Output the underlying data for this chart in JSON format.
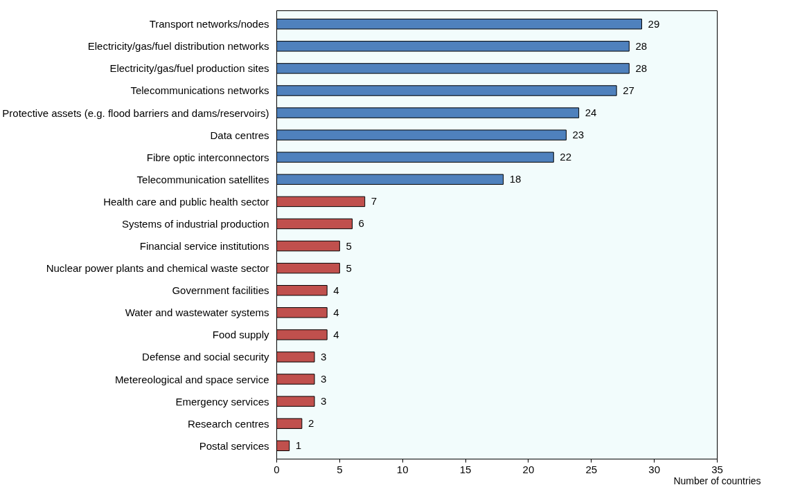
{
  "chart_data": {
    "type": "bar",
    "orientation": "horizontal",
    "xlabel": "Number of countries",
    "categories": [
      "Transport networks/nodes",
      "Electricity/gas/fuel distribution networks",
      "Electricity/gas/fuel production sites",
      "Telecommunications networks",
      "Protective assets (e.g. flood barriers and dams/reservoirs)",
      "Data centres",
      "Fibre optic interconnectors",
      "Telecommunication satellites",
      "Health care and public health sector",
      "Systems of industrial production",
      "Financial service institutions",
      "Nuclear power plants and chemical waste sector",
      "Government facilities",
      "Water and wastewater systems",
      "Food supply",
      "Defense and social security",
      "Metereological and space service",
      "Emergency services",
      "Research centres",
      "Postal services"
    ],
    "values": [
      29,
      28,
      28,
      27,
      24,
      23,
      22,
      18,
      7,
      6,
      5,
      5,
      4,
      4,
      4,
      3,
      3,
      3,
      2,
      1
    ],
    "colors": [
      "#4f81bd",
      "#4f81bd",
      "#4f81bd",
      "#4f81bd",
      "#4f81bd",
      "#4f81bd",
      "#4f81bd",
      "#4f81bd",
      "#c0504d",
      "#c0504d",
      "#c0504d",
      "#c0504d",
      "#c0504d",
      "#c0504d",
      "#c0504d",
      "#c0504d",
      "#c0504d",
      "#c0504d",
      "#c0504d",
      "#c0504d"
    ],
    "xlim": [
      0,
      35
    ],
    "xticks": [
      0,
      5,
      10,
      15,
      20,
      25,
      30,
      35
    ],
    "data_labels": true,
    "grid": false
  }
}
